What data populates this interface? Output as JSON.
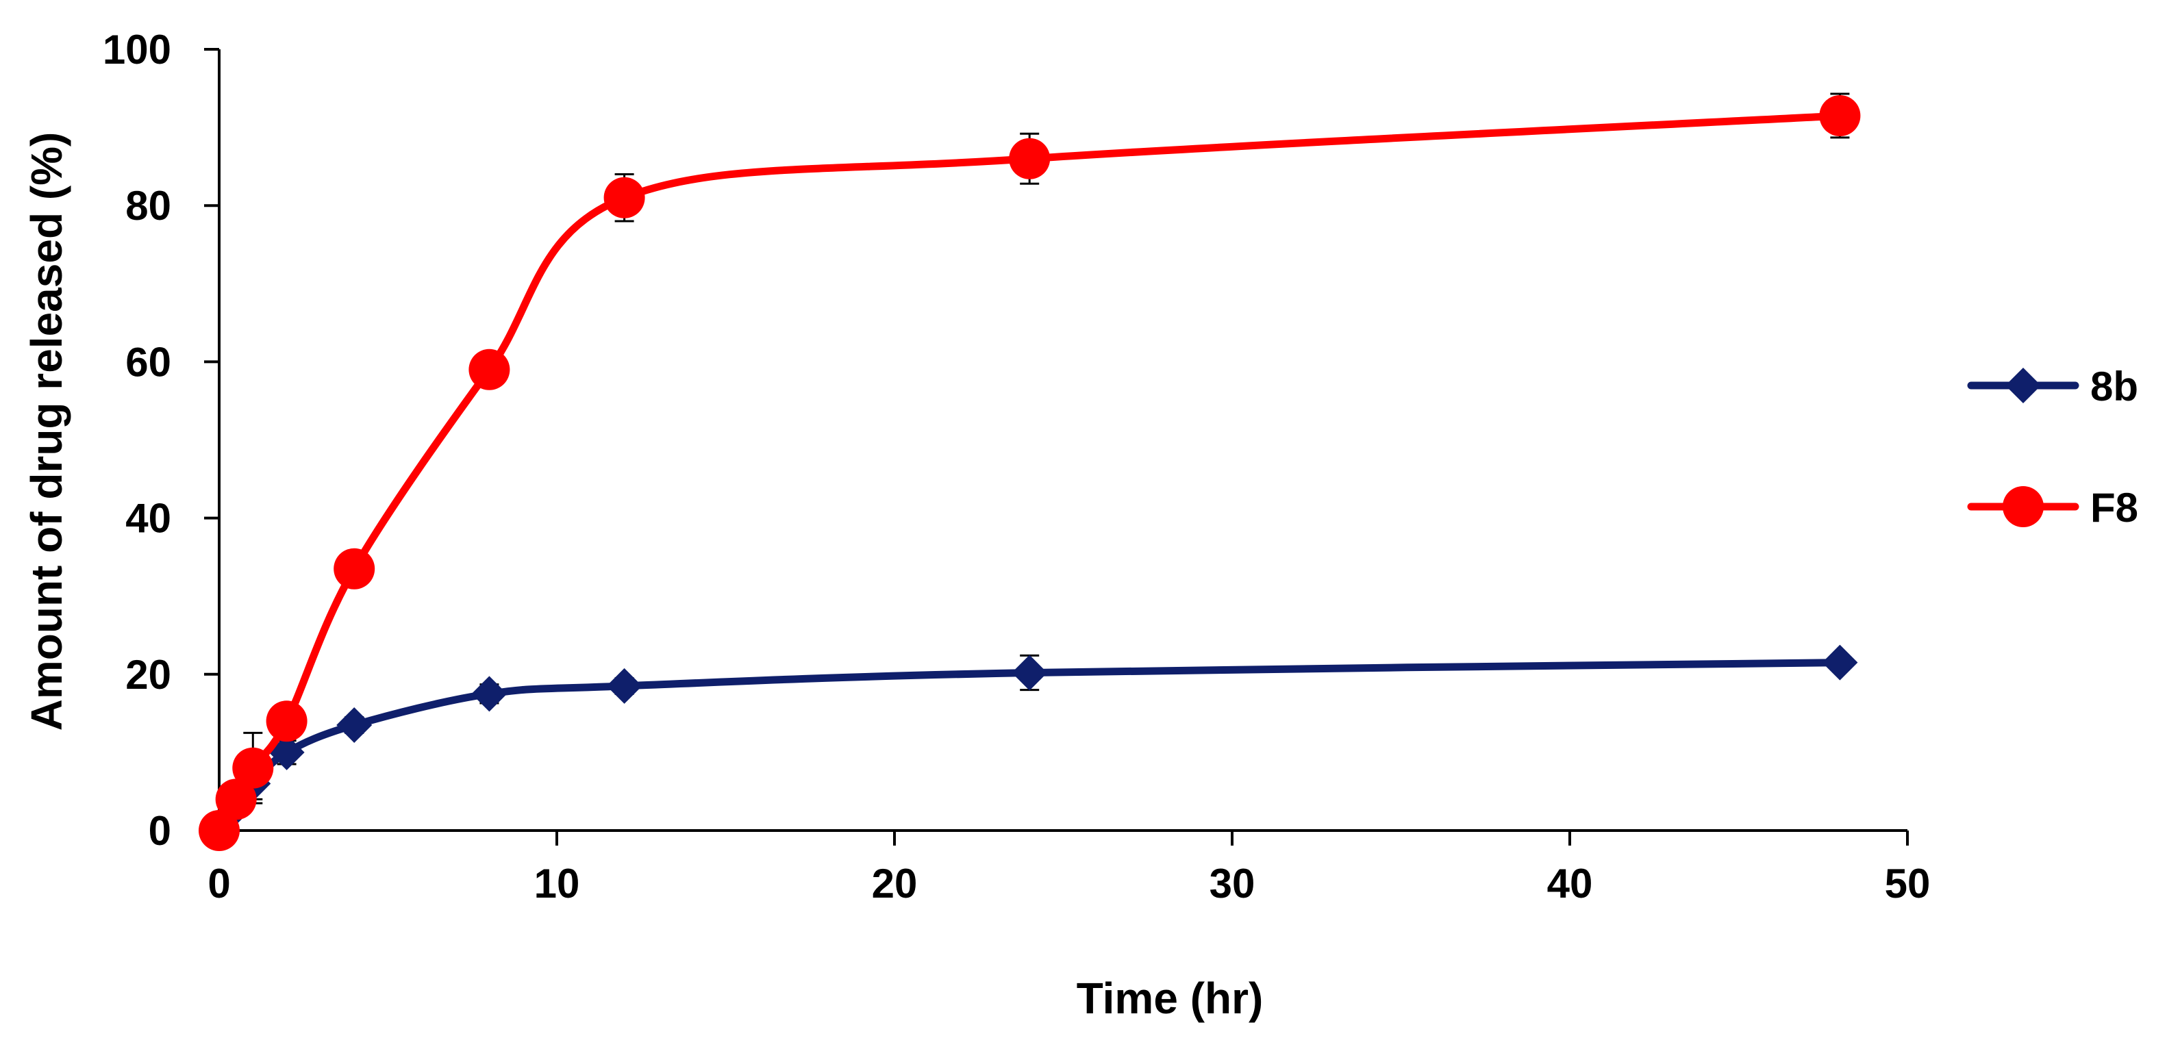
{
  "chart_data": {
    "type": "line",
    "title": "",
    "xlabel": "Time (hr)",
    "ylabel": "Amount of drug released (%)",
    "xlim": [
      0,
      50
    ],
    "ylim": [
      0,
      100
    ],
    "xticks": [
      0,
      10,
      20,
      30,
      40,
      50
    ],
    "yticks": [
      0,
      20,
      40,
      60,
      80,
      100
    ],
    "grid": false,
    "legend_position": "right",
    "series": [
      {
        "name": "8b",
        "color": "#0f1f6b",
        "marker": "diamond",
        "x": [
          0,
          0.5,
          1,
          2,
          4,
          8,
          12,
          24,
          48
        ],
        "y": [
          0,
          3,
          6,
          10,
          13.5,
          17.5,
          18.5,
          20.2,
          21.5
        ],
        "error": [
          0,
          1.2,
          2.0,
          1.5,
          1.0,
          1.2,
          1.0,
          2.2,
          0.8
        ]
      },
      {
        "name": "F8",
        "color": "#ff0000",
        "marker": "circle",
        "x": [
          0,
          0.5,
          1,
          2,
          4,
          8,
          12,
          24,
          48
        ],
        "y": [
          0,
          4,
          8,
          14,
          33.5,
          59,
          81,
          86,
          91.5
        ],
        "error": [
          0,
          2.0,
          4.5,
          1.5,
          1.5,
          1.5,
          3.0,
          3.2,
          2.8
        ]
      }
    ]
  }
}
